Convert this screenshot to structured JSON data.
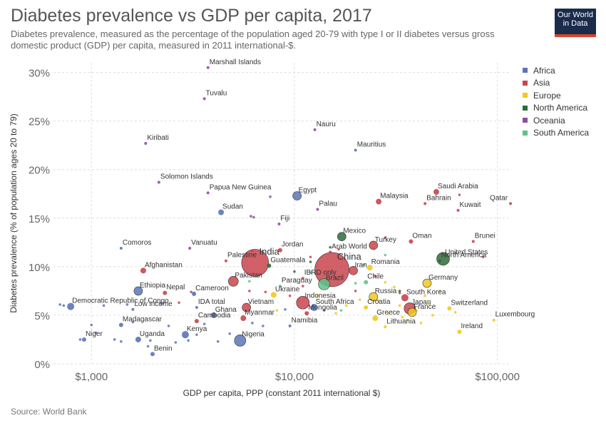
{
  "header": {
    "title": "Diabetes prevalence vs GDP per capita, 2017",
    "subtitle": "Diabetes prevalence, measured as the percentage of the population aged 20-79 with type I or II diabetes versus gross domestic product (GDP) per capita, measured in 2011 international-$."
  },
  "logo": {
    "line1": "Our World",
    "line2": "in Data"
  },
  "footer": {
    "source": "Source: World Bank"
  },
  "colors": {
    "Africa": "#5a75b8",
    "Asia": "#c9444e",
    "Europe": "#f2c81e",
    "North America": "#2e6b3a",
    "Oceania": "#8e4ea3",
    "South America": "#5fc28a"
  },
  "legend": [
    "Africa",
    "Asia",
    "Europe",
    "North America",
    "Oceania",
    "South America"
  ],
  "chart_data": {
    "type": "scatter",
    "title": "Diabetes prevalence vs GDP per capita, 2017",
    "xlabel": "GDP per capita, PPP (constant 2011 international $)",
    "ylabel": "Diabetes prevalence (% of population ages 20 to 79)",
    "xscale": "log",
    "xlim": [
      650,
      115000
    ],
    "ylim": [
      0,
      31
    ],
    "x_ticks": [
      1000,
      10000,
      100000
    ],
    "x_tick_labels": [
      "$1,000",
      "$10,000",
      "$100,000"
    ],
    "y_ticks": [
      0,
      5,
      10,
      15,
      20,
      25,
      30
    ],
    "y_tick_labels": [
      "0%",
      "5%",
      "10%",
      "15%",
      "20%",
      "25%",
      "30%"
    ],
    "grid": true,
    "legend_position": "right",
    "labeled_points": [
      {
        "label": "Marshall Islands",
        "x": 3750,
        "y": 30.5,
        "region": "Oceania",
        "size": 2
      },
      {
        "label": "Tuvalu",
        "x": 3600,
        "y": 27.3,
        "region": "Oceania",
        "size": 2
      },
      {
        "label": "Nauru",
        "x": 12600,
        "y": 24.1,
        "region": "Oceania",
        "size": 2
      },
      {
        "label": "Kiribati",
        "x": 1850,
        "y": 22.7,
        "region": "Oceania",
        "size": 2
      },
      {
        "label": "Mauritius",
        "x": 20000,
        "y": 22.0,
        "region": "Africa",
        "size": 2
      },
      {
        "label": "Solomon Islands",
        "x": 2150,
        "y": 18.7,
        "region": "Oceania",
        "size": 2
      },
      {
        "label": "Saudi Arabia",
        "x": 50000,
        "y": 17.7,
        "region": "Asia",
        "size": 4
      },
      {
        "label": "Papua New Guinea",
        "x": 3750,
        "y": 17.6,
        "region": "Oceania",
        "size": 2
      },
      {
        "label": "Egypt",
        "x": 10300,
        "y": 17.3,
        "region": "Africa",
        "size": 6
      },
      {
        "label": "Malaysia",
        "x": 26000,
        "y": 16.7,
        "region": "Asia",
        "size": 4
      },
      {
        "label": "Bahrain",
        "x": 44000,
        "y": 16.5,
        "region": "Asia",
        "size": 2
      },
      {
        "label": "Qatar",
        "x": 116000,
        "y": 16.5,
        "region": "Asia",
        "size": 2
      },
      {
        "label": "Kuwait",
        "x": 64000,
        "y": 15.8,
        "region": "Asia",
        "size": 2
      },
      {
        "label": "Palau",
        "x": 13000,
        "y": 15.9,
        "region": "Oceania",
        "size": 2
      },
      {
        "label": "Sudan",
        "x": 4350,
        "y": 15.6,
        "region": "Africa",
        "size": 4
      },
      {
        "label": "Fiji",
        "x": 8400,
        "y": 14.4,
        "region": "Oceania",
        "size": 2
      },
      {
        "label": "Mexico",
        "x": 17100,
        "y": 13.1,
        "region": "North America",
        "size": 6
      },
      {
        "label": "Oman",
        "x": 37500,
        "y": 12.6,
        "region": "Asia",
        "size": 3
      },
      {
        "label": "Brunei",
        "x": 76000,
        "y": 12.6,
        "region": "Asia",
        "size": 2
      },
      {
        "label": "Turkey",
        "x": 24500,
        "y": 12.2,
        "region": "Asia",
        "size": 6
      },
      {
        "label": "Comoros",
        "x": 1400,
        "y": 11.9,
        "region": "Africa",
        "size": 2
      },
      {
        "label": "Vanuatu",
        "x": 3050,
        "y": 11.9,
        "region": "Oceania",
        "size": 2
      },
      {
        "label": "Jordan",
        "x": 8500,
        "y": 11.7,
        "region": "Asia",
        "size": 3
      },
      {
        "label": "Arab World",
        "x": 15000,
        "y": 11.5,
        "region": "Asia",
        "size": 2
      },
      {
        "label": "India",
        "x": 6400,
        "y": 10.4,
        "region": "Asia",
        "size": 19
      },
      {
        "label": "United States",
        "x": 54000,
        "y": 10.8,
        "region": "North America",
        "size": 9
      },
      {
        "label": "North America",
        "x": 52000,
        "y": 10.6,
        "region": "North America",
        "size": 2
      },
      {
        "label": "Palestine",
        "x": 4600,
        "y": 10.6,
        "region": "Asia",
        "size": 2
      },
      {
        "label": "China",
        "x": 15300,
        "y": 9.7,
        "region": "Asia",
        "size": 24
      },
      {
        "label": "Iran",
        "x": 19500,
        "y": 9.6,
        "region": "Asia",
        "size": 6
      },
      {
        "label": "Romania",
        "x": 23500,
        "y": 9.9,
        "region": "Europe",
        "size": 4
      },
      {
        "label": "Guatemala",
        "x": 7500,
        "y": 10.1,
        "region": "North America",
        "size": 3
      },
      {
        "label": "Afghanistan",
        "x": 1800,
        "y": 9.6,
        "region": "Asia",
        "size": 4
      },
      {
        "label": "IBRD only",
        "x": 11000,
        "y": 8.8,
        "region": "Asia",
        "size": 2
      },
      {
        "label": "Pakistan",
        "x": 5000,
        "y": 8.5,
        "region": "Asia",
        "size": 7
      },
      {
        "label": "Brazil",
        "x": 14000,
        "y": 8.2,
        "region": "South America",
        "size": 8
      },
      {
        "label": "Chile",
        "x": 22500,
        "y": 8.4,
        "region": "South America",
        "size": 3
      },
      {
        "label": "Germany",
        "x": 45000,
        "y": 8.3,
        "region": "Europe",
        "size": 6
      },
      {
        "label": "Paraguay",
        "x": 8500,
        "y": 8.0,
        "region": "South America",
        "size": 2
      },
      {
        "label": "Ethiopia",
        "x": 1700,
        "y": 7.5,
        "region": "Africa",
        "size": 6
      },
      {
        "label": "Nepal",
        "x": 2300,
        "y": 7.3,
        "region": "Asia",
        "size": 3
      },
      {
        "label": "Cameroon",
        "x": 3200,
        "y": 7.2,
        "region": "Africa",
        "size": 3
      },
      {
        "label": "Ukraine",
        "x": 7900,
        "y": 7.1,
        "region": "Europe",
        "size": 4
      },
      {
        "label": "Indonesia",
        "x": 11000,
        "y": 6.3,
        "region": "Asia",
        "size": 9
      },
      {
        "label": "Russia",
        "x": 24500,
        "y": 6.9,
        "region": "Europe",
        "size": 6
      },
      {
        "label": "South Korea",
        "x": 35000,
        "y": 6.8,
        "region": "Asia",
        "size": 5
      },
      {
        "label": "Democratic Republic of Congo",
        "x": 790,
        "y": 5.9,
        "region": "Africa",
        "size": 5
      },
      {
        "label": "Low income",
        "x": 1600,
        "y": 5.6,
        "region": "Africa",
        "size": 2
      },
      {
        "label": "IDA total",
        "x": 3300,
        "y": 5.8,
        "region": "Africa",
        "size": 2
      },
      {
        "label": "Vietnam",
        "x": 5800,
        "y": 5.8,
        "region": "Asia",
        "size": 6
      },
      {
        "label": "South Africa",
        "x": 12500,
        "y": 5.8,
        "region": "Africa",
        "size": 5
      },
      {
        "label": "Croatia",
        "x": 22500,
        "y": 5.8,
        "region": "Europe",
        "size": 3
      },
      {
        "label": "Japan",
        "x": 37000,
        "y": 5.7,
        "region": "Asia",
        "size": 8
      },
      {
        "label": "Switzerland",
        "x": 58000,
        "y": 5.7,
        "region": "Europe",
        "size": 3
      },
      {
        "label": "Ghana",
        "x": 4000,
        "y": 5.0,
        "region": "Africa",
        "size": 4
      },
      {
        "label": "Mongolia",
        "x": 11500,
        "y": 5.2,
        "region": "Asia",
        "size": 3
      },
      {
        "label": "France",
        "x": 38000,
        "y": 5.3,
        "region": "Europe",
        "size": 6
      },
      {
        "label": "Myanmar",
        "x": 5600,
        "y": 4.7,
        "region": "Asia",
        "size": 4
      },
      {
        "label": "Greece",
        "x": 25000,
        "y": 4.7,
        "region": "Europe",
        "size": 4
      },
      {
        "label": "Luxembourg",
        "x": 96000,
        "y": 4.5,
        "region": "Europe",
        "size": 2
      },
      {
        "label": "Madagascar",
        "x": 1400,
        "y": 4.0,
        "region": "Africa",
        "size": 3
      },
      {
        "label": "Cambodia",
        "x": 3300,
        "y": 4.4,
        "region": "Asia",
        "size": 3
      },
      {
        "label": "Namibia",
        "x": 9500,
        "y": 3.9,
        "region": "Africa",
        "size": 2
      },
      {
        "label": "Lithuania",
        "x": 28000,
        "y": 3.8,
        "region": "Europe",
        "size": 2
      },
      {
        "label": "Ireland",
        "x": 65000,
        "y": 3.3,
        "region": "Europe",
        "size": 3
      },
      {
        "label": "Kenya",
        "x": 2900,
        "y": 3.0,
        "region": "Africa",
        "size": 5
      },
      {
        "label": "Uganda",
        "x": 1700,
        "y": 2.5,
        "region": "Africa",
        "size": 4
      },
      {
        "label": "Nigeria",
        "x": 5400,
        "y": 2.4,
        "region": "Africa",
        "size": 8
      },
      {
        "label": "Niger",
        "x": 920,
        "y": 2.5,
        "region": "Africa",
        "size": 3
      },
      {
        "label": "Benin",
        "x": 2000,
        "y": 1.0,
        "region": "Africa",
        "size": 3
      }
    ],
    "unlabeled_points": [
      {
        "x": 700,
        "y": 6.1,
        "region": "Africa"
      },
      {
        "x": 730,
        "y": 6.0,
        "region": "Africa"
      },
      {
        "x": 880,
        "y": 2.5,
        "region": "Africa"
      },
      {
        "x": 1000,
        "y": 4.0,
        "region": "Africa"
      },
      {
        "x": 1050,
        "y": 3.2,
        "region": "Africa"
      },
      {
        "x": 1150,
        "y": 6.0,
        "region": "Africa"
      },
      {
        "x": 1300,
        "y": 2.5,
        "region": "Africa"
      },
      {
        "x": 1400,
        "y": 2.3,
        "region": "Africa"
      },
      {
        "x": 1500,
        "y": 6.1,
        "region": "Africa"
      },
      {
        "x": 1600,
        "y": 4.3,
        "region": "Africa"
      },
      {
        "x": 1900,
        "y": 1.8,
        "region": "Africa"
      },
      {
        "x": 1950,
        "y": 2.4,
        "region": "Africa"
      },
      {
        "x": 2200,
        "y": 6.2,
        "region": "Africa"
      },
      {
        "x": 2400,
        "y": 3.9,
        "region": "Africa"
      },
      {
        "x": 2600,
        "y": 2.2,
        "region": "Africa"
      },
      {
        "x": 3000,
        "y": 2.4,
        "region": "Africa"
      },
      {
        "x": 3300,
        "y": 3.0,
        "region": "Africa"
      },
      {
        "x": 3600,
        "y": 4.1,
        "region": "Africa"
      },
      {
        "x": 4200,
        "y": 2.3,
        "region": "Africa"
      },
      {
        "x": 4800,
        "y": 3.1,
        "region": "Africa"
      },
      {
        "x": 6200,
        "y": 4.2,
        "region": "Africa"
      },
      {
        "x": 7000,
        "y": 3.9,
        "region": "Africa"
      },
      {
        "x": 9000,
        "y": 5.6,
        "region": "Africa"
      },
      {
        "x": 14000,
        "y": 5.5,
        "region": "Africa"
      },
      {
        "x": 2700,
        "y": 6.3,
        "region": "Asia"
      },
      {
        "x": 3200,
        "y": 7.3,
        "region": "Asia"
      },
      {
        "x": 6000,
        "y": 7.5,
        "region": "Asia"
      },
      {
        "x": 7200,
        "y": 7.4,
        "region": "Asia"
      },
      {
        "x": 9500,
        "y": 7.0,
        "region": "Asia"
      },
      {
        "x": 11000,
        "y": 8.0,
        "region": "Asia"
      },
      {
        "x": 12000,
        "y": 11.0,
        "region": "Asia"
      },
      {
        "x": 16500,
        "y": 11.8,
        "region": "Asia"
      },
      {
        "x": 20000,
        "y": 7.5,
        "region": "Asia"
      },
      {
        "x": 25000,
        "y": 9.0,
        "region": "Asia"
      },
      {
        "x": 28000,
        "y": 13.0,
        "region": "Asia"
      },
      {
        "x": 33000,
        "y": 7.3,
        "region": "Asia"
      },
      {
        "x": 65000,
        "y": 17.4,
        "region": "Asia"
      },
      {
        "x": 85000,
        "y": 11.0,
        "region": "Asia"
      },
      {
        "x": 6100,
        "y": 15.2,
        "region": "Oceania"
      },
      {
        "x": 7600,
        "y": 17.2,
        "region": "Oceania"
      },
      {
        "x": 3100,
        "y": 7.4,
        "region": "Oceania"
      },
      {
        "x": 6300,
        "y": 15.1,
        "region": "Oceania"
      },
      {
        "x": 8200,
        "y": 5.5,
        "region": "Europe"
      },
      {
        "x": 10500,
        "y": 6.5,
        "region": "Europe"
      },
      {
        "x": 13000,
        "y": 7.0,
        "region": "Europe"
      },
      {
        "x": 16000,
        "y": 5.2,
        "region": "Europe"
      },
      {
        "x": 18000,
        "y": 6.0,
        "region": "Europe"
      },
      {
        "x": 21000,
        "y": 6.6,
        "region": "Europe"
      },
      {
        "x": 26000,
        "y": 6.5,
        "region": "Europe"
      },
      {
        "x": 28000,
        "y": 8.4,
        "region": "Europe"
      },
      {
        "x": 29000,
        "y": 5.2,
        "region": "Europe"
      },
      {
        "x": 31000,
        "y": 7.9,
        "region": "Europe"
      },
      {
        "x": 33000,
        "y": 6.0,
        "region": "Europe"
      },
      {
        "x": 34000,
        "y": 4.8,
        "region": "Europe"
      },
      {
        "x": 36000,
        "y": 4.5,
        "region": "Europe"
      },
      {
        "x": 40000,
        "y": 5.5,
        "region": "Europe"
      },
      {
        "x": 42000,
        "y": 4.2,
        "region": "Europe"
      },
      {
        "x": 44000,
        "y": 7.0,
        "region": "Europe"
      },
      {
        "x": 46000,
        "y": 6.2,
        "region": "Europe"
      },
      {
        "x": 48000,
        "y": 5.0,
        "region": "Europe"
      },
      {
        "x": 52000,
        "y": 7.5,
        "region": "Europe"
      },
      {
        "x": 62000,
        "y": 5.3,
        "region": "Europe"
      },
      {
        "x": 10000,
        "y": 9.5,
        "region": "North America"
      },
      {
        "x": 12000,
        "y": 10.5,
        "region": "North America"
      },
      {
        "x": 15000,
        "y": 12.0,
        "region": "North America"
      },
      {
        "x": 16000,
        "y": 8.8,
        "region": "North America"
      },
      {
        "x": 6200,
        "y": 11.6,
        "region": "North America"
      },
      {
        "x": 33000,
        "y": 7.5,
        "region": "North America"
      },
      {
        "x": 6000,
        "y": 8.5,
        "region": "South America"
      },
      {
        "x": 12000,
        "y": 9.4,
        "region": "South America"
      },
      {
        "x": 17000,
        "y": 5.5,
        "region": "South America"
      },
      {
        "x": 20000,
        "y": 8.3,
        "region": "South America"
      },
      {
        "x": 22000,
        "y": 10.2,
        "region": "South America"
      },
      {
        "x": 28000,
        "y": 11.2,
        "region": "South America"
      }
    ]
  }
}
